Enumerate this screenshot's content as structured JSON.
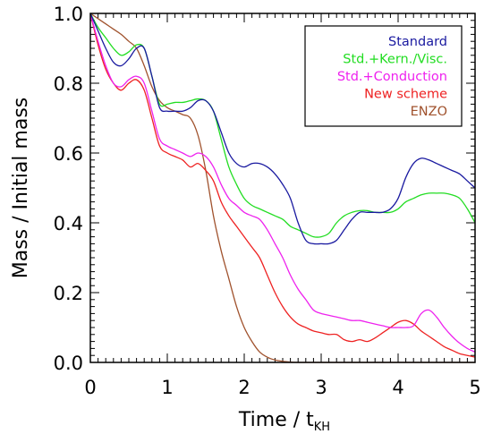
{
  "chart_data": {
    "type": "line",
    "xlabel": "Time / t",
    "xlabel_subscript": "KH",
    "ylabel": "Mass / Initial mass",
    "xlim": [
      0,
      5
    ],
    "ylim": [
      0,
      1
    ],
    "x_ticks": [
      "0",
      "1",
      "2",
      "3",
      "4",
      "5"
    ],
    "y_ticks": [
      "0.0",
      "0.2",
      "0.4",
      "0.6",
      "0.8",
      "1.0"
    ],
    "legend_position": "top-right",
    "grid": false,
    "series": [
      {
        "name": "Standard",
        "color": "#1a1aa0",
        "x": [
          0,
          0.1,
          0.2,
          0.3,
          0.4,
          0.5,
          0.6,
          0.7,
          0.8,
          0.9,
          1.0,
          1.1,
          1.2,
          1.3,
          1.4,
          1.5,
          1.6,
          1.7,
          1.8,
          1.9,
          2.0,
          2.1,
          2.2,
          2.3,
          2.4,
          2.5,
          2.6,
          2.7,
          2.8,
          2.9,
          3.0,
          3.1,
          3.2,
          3.3,
          3.4,
          3.5,
          3.6,
          3.7,
          3.8,
          3.9,
          4.0,
          4.1,
          4.2,
          4.3,
          4.4,
          4.5,
          4.6,
          4.7,
          4.8,
          4.9,
          5.0
        ],
        "y": [
          1.0,
          0.95,
          0.9,
          0.86,
          0.85,
          0.87,
          0.9,
          0.9,
          0.82,
          0.73,
          0.72,
          0.72,
          0.72,
          0.73,
          0.75,
          0.75,
          0.72,
          0.66,
          0.6,
          0.57,
          0.56,
          0.57,
          0.57,
          0.56,
          0.54,
          0.51,
          0.47,
          0.4,
          0.35,
          0.34,
          0.34,
          0.34,
          0.35,
          0.38,
          0.41,
          0.43,
          0.43,
          0.43,
          0.43,
          0.44,
          0.47,
          0.53,
          0.57,
          0.585,
          0.58,
          0.57,
          0.56,
          0.55,
          0.54,
          0.52,
          0.5
        ]
      },
      {
        "name": "Std.+Kern./Visc.",
        "color": "#22dd22",
        "x": [
          0,
          0.1,
          0.2,
          0.3,
          0.4,
          0.5,
          0.6,
          0.7,
          0.8,
          0.9,
          1.0,
          1.1,
          1.2,
          1.3,
          1.4,
          1.5,
          1.6,
          1.7,
          1.8,
          1.9,
          2.0,
          2.1,
          2.2,
          2.3,
          2.4,
          2.5,
          2.6,
          2.7,
          2.8,
          2.9,
          3.0,
          3.1,
          3.2,
          3.3,
          3.4,
          3.5,
          3.6,
          3.7,
          3.8,
          3.9,
          4.0,
          4.1,
          4.2,
          4.3,
          4.4,
          4.5,
          4.6,
          4.7,
          4.8,
          4.9,
          5.0
        ],
        "y": [
          1.0,
          0.96,
          0.93,
          0.9,
          0.88,
          0.89,
          0.91,
          0.9,
          0.82,
          0.74,
          0.74,
          0.745,
          0.745,
          0.75,
          0.755,
          0.75,
          0.72,
          0.64,
          0.56,
          0.51,
          0.47,
          0.45,
          0.44,
          0.43,
          0.42,
          0.41,
          0.39,
          0.38,
          0.37,
          0.36,
          0.36,
          0.37,
          0.4,
          0.42,
          0.43,
          0.435,
          0.435,
          0.43,
          0.43,
          0.43,
          0.44,
          0.46,
          0.47,
          0.48,
          0.485,
          0.485,
          0.485,
          0.48,
          0.47,
          0.44,
          0.4
        ]
      },
      {
        "name": "Std.+Conduction",
        "color": "#ee22ee",
        "x": [
          0,
          0.1,
          0.2,
          0.3,
          0.4,
          0.5,
          0.6,
          0.7,
          0.8,
          0.9,
          1.0,
          1.1,
          1.2,
          1.3,
          1.4,
          1.5,
          1.6,
          1.7,
          1.8,
          1.9,
          2.0,
          2.1,
          2.2,
          2.3,
          2.4,
          2.5,
          2.6,
          2.7,
          2.8,
          2.9,
          3.0,
          3.1,
          3.2,
          3.3,
          3.4,
          3.5,
          3.6,
          3.7,
          3.8,
          3.9,
          4.0,
          4.1,
          4.2,
          4.3,
          4.4,
          4.5,
          4.6,
          4.7,
          4.8,
          4.9,
          5.0
        ],
        "y": [
          1.0,
          0.92,
          0.85,
          0.8,
          0.79,
          0.81,
          0.82,
          0.8,
          0.72,
          0.64,
          0.62,
          0.61,
          0.6,
          0.59,
          0.6,
          0.59,
          0.56,
          0.51,
          0.47,
          0.45,
          0.43,
          0.42,
          0.41,
          0.38,
          0.34,
          0.3,
          0.25,
          0.21,
          0.18,
          0.15,
          0.14,
          0.135,
          0.13,
          0.125,
          0.12,
          0.12,
          0.115,
          0.11,
          0.105,
          0.1,
          0.1,
          0.1,
          0.105,
          0.14,
          0.15,
          0.13,
          0.1,
          0.075,
          0.055,
          0.04,
          0.03
        ]
      },
      {
        "name": "New scheme",
        "color": "#ee2222",
        "x": [
          0,
          0.1,
          0.2,
          0.3,
          0.4,
          0.5,
          0.6,
          0.7,
          0.8,
          0.9,
          1.0,
          1.1,
          1.2,
          1.3,
          1.4,
          1.5,
          1.6,
          1.7,
          1.8,
          1.9,
          2.0,
          2.1,
          2.2,
          2.3,
          2.4,
          2.5,
          2.6,
          2.7,
          2.8,
          2.9,
          3.0,
          3.1,
          3.2,
          3.3,
          3.4,
          3.5,
          3.6,
          3.7,
          3.8,
          3.9,
          4.0,
          4.1,
          4.2,
          4.3,
          4.4,
          4.5,
          4.6,
          4.7,
          4.8,
          4.9,
          5.0
        ],
        "y": [
          1.0,
          0.91,
          0.84,
          0.8,
          0.78,
          0.8,
          0.81,
          0.78,
          0.7,
          0.62,
          0.6,
          0.59,
          0.58,
          0.56,
          0.57,
          0.55,
          0.52,
          0.46,
          0.42,
          0.39,
          0.36,
          0.33,
          0.3,
          0.25,
          0.2,
          0.16,
          0.13,
          0.11,
          0.1,
          0.09,
          0.085,
          0.08,
          0.08,
          0.065,
          0.06,
          0.065,
          0.06,
          0.07,
          0.085,
          0.1,
          0.115,
          0.12,
          0.11,
          0.09,
          0.075,
          0.06,
          0.045,
          0.035,
          0.025,
          0.02,
          0.015
        ]
      },
      {
        "name": "ENZO",
        "color": "#a0522d",
        "x": [
          0,
          0.1,
          0.2,
          0.3,
          0.4,
          0.5,
          0.6,
          0.7,
          0.8,
          0.9,
          1.0,
          1.1,
          1.2,
          1.3,
          1.4,
          1.5,
          1.6,
          1.7,
          1.8,
          1.9,
          2.0,
          2.1,
          2.2,
          2.3,
          2.4,
          2.5,
          2.6,
          2.7,
          2.8,
          2.9,
          3.0,
          3.5,
          4.0,
          4.5,
          5.0
        ],
        "y": [
          1.0,
          0.985,
          0.97,
          0.955,
          0.94,
          0.92,
          0.9,
          0.85,
          0.79,
          0.75,
          0.73,
          0.72,
          0.71,
          0.7,
          0.65,
          0.55,
          0.42,
          0.32,
          0.24,
          0.16,
          0.1,
          0.06,
          0.03,
          0.015,
          0.007,
          0.003,
          0.001,
          0.0,
          0.0,
          0.0,
          0.0,
          0.0,
          0.0,
          0.0,
          0.0
        ]
      }
    ]
  }
}
